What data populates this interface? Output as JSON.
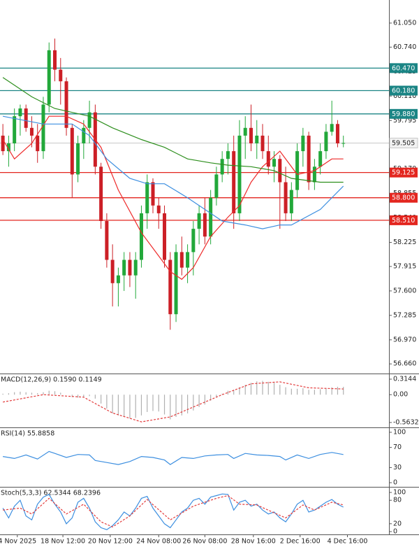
{
  "chart_data": [
    {
      "type": "candlestick",
      "xlim": [
        -0.5,
        66.9
      ],
      "ylim": [
        56.545,
        61.347
      ],
      "yticks": [
        {
          "value": 61.05,
          "label": "61.050"
        },
        {
          "value": 60.74,
          "label": "60.740"
        },
        {
          "value": 60.425,
          "label": "60.425"
        },
        {
          "value": 60.11,
          "label": "60.110"
        },
        {
          "value": 59.795,
          "label": "59.795"
        },
        {
          "value": 59.17,
          "label": "59.170"
        },
        {
          "value": 58.855,
          "label": "58.855"
        },
        {
          "value": 58.54,
          "label": "58.540"
        },
        {
          "value": 58.225,
          "label": "58.225"
        },
        {
          "value": 57.915,
          "label": "57.915"
        },
        {
          "value": 57.6,
          "label": "57.600"
        },
        {
          "value": 57.285,
          "label": "57.285"
        },
        {
          "value": 56.97,
          "label": "56.970"
        },
        {
          "value": 56.66,
          "label": "56.660"
        }
      ],
      "up_color": "#22a83a",
      "down_color": "#cc1f26",
      "open": [
        59.6,
        59.4,
        59.5,
        59.85,
        59.95,
        59.7,
        59.6,
        59.4,
        60.0,
        60.7,
        60.45,
        60.3,
        59.7,
        59.1,
        59.5,
        59.7,
        59.9,
        59.2,
        58.5,
        58.0,
        57.7,
        57.8,
        58.0,
        57.8,
        58.0,
        58.6,
        59.0,
        58.7,
        58.6,
        58.0,
        57.3,
        58.1,
        57.9,
        58.1,
        58.4,
        58.6,
        58.3,
        58.8,
        59.1,
        59.3,
        59.4,
        58.6,
        59.6,
        59.7,
        59.5,
        59.6,
        59.4,
        59.2,
        59.3,
        59.0,
        58.6,
        58.9,
        59.4,
        59.6,
        59.0,
        59.2,
        59.4,
        59.65,
        59.75,
        59.5
      ],
      "high": [
        59.75,
        59.6,
        59.95,
        60.0,
        60.0,
        59.85,
        59.75,
        60.1,
        60.8,
        60.85,
        60.6,
        60.35,
        59.75,
        59.6,
        59.8,
        60.05,
        60.0,
        59.25,
        58.6,
        58.2,
        57.9,
        58.1,
        58.1,
        58.1,
        58.7,
        59.1,
        59.05,
        58.8,
        58.7,
        58.1,
        58.2,
        58.3,
        58.2,
        58.5,
        58.7,
        58.8,
        58.9,
        59.2,
        59.4,
        59.5,
        59.6,
        59.8,
        59.85,
        60.0,
        59.8,
        59.75,
        59.6,
        59.4,
        59.35,
        59.2,
        59.0,
        59.5,
        59.7,
        59.65,
        59.3,
        59.5,
        59.75,
        60.05,
        59.8,
        59.6
      ],
      "low": [
        59.35,
        59.2,
        59.4,
        59.6,
        59.65,
        59.45,
        59.25,
        59.3,
        59.9,
        60.3,
        60.0,
        59.6,
        58.8,
        59.0,
        59.3,
        59.5,
        59.1,
        58.4,
        57.9,
        57.4,
        57.4,
        57.6,
        57.65,
        57.5,
        57.9,
        58.4,
        58.6,
        58.4,
        57.9,
        57.1,
        57.2,
        57.8,
        57.7,
        57.8,
        58.2,
        58.2,
        58.2,
        58.7,
        59.0,
        59.1,
        58.4,
        58.5,
        59.3,
        59.4,
        59.3,
        59.3,
        59.1,
        59.0,
        58.4,
        58.5,
        58.5,
        58.8,
        59.2,
        58.9,
        58.9,
        59.1,
        59.3,
        59.6,
        59.45,
        59.45
      ],
      "close": [
        59.4,
        59.5,
        59.85,
        59.95,
        59.7,
        59.6,
        59.4,
        60.0,
        60.7,
        60.45,
        60.3,
        59.7,
        59.1,
        59.5,
        59.7,
        59.9,
        59.2,
        58.5,
        58.0,
        57.7,
        57.8,
        58.0,
        57.8,
        58.0,
        58.6,
        59.0,
        58.7,
        58.6,
        58.0,
        57.3,
        58.1,
        57.9,
        58.1,
        58.4,
        58.6,
        58.3,
        58.8,
        59.1,
        59.3,
        59.4,
        58.6,
        59.6,
        59.7,
        59.5,
        59.6,
        59.4,
        59.2,
        59.3,
        59.0,
        58.6,
        58.9,
        59.4,
        59.6,
        59.0,
        59.2,
        59.4,
        59.65,
        59.75,
        59.5,
        59.505
      ],
      "overlays": [
        {
          "color": "#ee2a2a",
          "x": [
            0,
            2,
            5,
            8,
            11,
            14,
            17,
            20,
            24,
            27,
            29,
            31,
            33,
            36,
            39,
            41,
            43,
            45,
            48,
            51,
            54,
            57,
            59
          ],
          "values": [
            59.55,
            59.3,
            59.5,
            59.85,
            59.85,
            59.75,
            59.45,
            58.9,
            58.35,
            58.05,
            57.85,
            57.75,
            57.9,
            58.3,
            58.55,
            58.7,
            59.0,
            59.2,
            59.4,
            59.1,
            59.15,
            59.3,
            59.3
          ]
        },
        {
          "color": "#3d8fe0",
          "x": [
            0,
            7,
            12,
            15,
            18,
            22,
            25,
            28,
            32,
            36,
            38,
            42,
            45,
            48,
            50,
            55,
            59
          ],
          "values": [
            59.85,
            59.75,
            59.75,
            59.6,
            59.3,
            59.05,
            58.98,
            58.98,
            58.8,
            58.6,
            58.5,
            58.45,
            58.4,
            58.45,
            58.45,
            58.65,
            58.95
          ]
        },
        {
          "color": "#2e8f1e",
          "x": [
            0,
            5,
            9,
            15,
            19,
            24,
            28,
            32,
            36,
            39,
            43,
            47,
            50,
            55,
            59
          ],
          "values": [
            60.35,
            60.1,
            59.95,
            59.85,
            59.7,
            59.55,
            59.45,
            59.3,
            59.25,
            59.22,
            59.2,
            59.15,
            59.05,
            59.0,
            59.0
          ]
        }
      ],
      "levels": [
        {
          "value": 60.47,
          "label": "60.470",
          "color": "#1b8585"
        },
        {
          "value": 60.18,
          "label": "60.180",
          "color": "#1b8585"
        },
        {
          "value": 59.88,
          "label": "59.880",
          "color": "#1b8585"
        },
        {
          "value": 59.125,
          "label": "59.125",
          "color": "#e3261f"
        },
        {
          "value": 58.8,
          "label": "58.800",
          "color": "#e3261f"
        },
        {
          "value": 58.51,
          "label": "58.510",
          "color": "#e3261f"
        }
      ],
      "last": {
        "value": 59.505,
        "label": "59.505",
        "color": "#c8c8c8"
      }
    },
    {
      "type": "macd",
      "title": "MACD(12,26,9) 0.1590 0.1149",
      "xlim": [
        -0.5,
        66.9
      ],
      "ylim": [
        -0.648,
        0.414
      ],
      "yticks": [
        0.3144,
        {
          "value": 0,
          "label": "0.00"
        },
        -0.5632
      ],
      "color": "#b0b0b0",
      "values": [
        0.02,
        0.03,
        0.05,
        0.06,
        0.05,
        0.04,
        0.03,
        0.05,
        0.08,
        0.07,
        0.04,
        0.0,
        -0.05,
        -0.06,
        -0.05,
        -0.03,
        -0.08,
        -0.18,
        -0.28,
        -0.38,
        -0.42,
        -0.45,
        -0.48,
        -0.47,
        -0.42,
        -0.35,
        -0.33,
        -0.34,
        -0.4,
        -0.5,
        -0.45,
        -0.42,
        -0.38,
        -0.32,
        -0.25,
        -0.2,
        -0.12,
        -0.05,
        0.02,
        0.08,
        0.1,
        0.15,
        0.2,
        0.24,
        0.27,
        0.28,
        0.26,
        0.24,
        0.2,
        0.15,
        0.12,
        0.12,
        0.13,
        0.1,
        0.1,
        0.11,
        0.13,
        0.15,
        0.16,
        0.159
      ],
      "series": [
        {
          "color": "#e33b3b",
          "dashed": true,
          "x": [
            0,
            7,
            14,
            19,
            24,
            29,
            33,
            38,
            43,
            48,
            53,
            59
          ],
          "values": [
            -0.15,
            0.0,
            -0.05,
            -0.37,
            -0.55,
            -0.45,
            -0.25,
            0.0,
            0.22,
            0.26,
            0.14,
            0.115
          ]
        }
      ]
    },
    {
      "type": "line",
      "title": "RSI(14) 55.8858",
      "xlim": [
        -0.5,
        66.9
      ],
      "ylim": [
        -6.9,
        108.3
      ],
      "yticks": [
        100,
        70,
        30,
        0
      ],
      "series": [
        {
          "color": "#3d8fe0",
          "x": [
            0,
            2,
            4,
            6,
            8,
            9,
            11,
            13,
            15,
            16,
            18,
            20,
            22,
            24,
            26,
            28,
            29,
            31,
            33,
            35,
            37,
            39,
            40,
            42,
            44,
            46,
            48,
            49,
            51,
            53,
            55,
            57,
            59
          ],
          "values": [
            52,
            48,
            55,
            47,
            62,
            58,
            50,
            56,
            55,
            44,
            40,
            36,
            42,
            52,
            50,
            45,
            36,
            50,
            48,
            53,
            55,
            56,
            48,
            58,
            55,
            54,
            52,
            45,
            55,
            48,
            56,
            60,
            55.9
          ]
        }
      ]
    },
    {
      "type": "line",
      "title": "Stoch(5,3,3) 62.5344 68.2396",
      "xlim": [
        -0.5,
        66.9
      ],
      "ylim": [
        -5.4,
        112.5
      ],
      "yticks": [
        100,
        80,
        20,
        0
      ],
      "xticks": [
        {
          "value": 2.5,
          "label": "4 Nov 2025"
        },
        {
          "value": 10.4,
          "label": "18 Nov 12:00"
        },
        {
          "value": 18.6,
          "label": "20 Nov 12:00"
        },
        {
          "value": 27,
          "label": "24 Nov 08:00"
        },
        {
          "value": 35,
          "label": "26 Nov 08:00"
        },
        {
          "value": 43.4,
          "label": "28 Nov 16:00"
        },
        {
          "value": 51.5,
          "label": "2 Dec 16:00"
        },
        {
          "value": 59.7,
          "label": "4 Dec 16:00"
        }
      ],
      "series": [
        {
          "color": "#3d8fe0",
          "values": [
            60,
            35,
            65,
            80,
            40,
            30,
            70,
            88,
            95,
            70,
            50,
            20,
            35,
            75,
            85,
            60,
            25,
            10,
            5,
            15,
            30,
            50,
            40,
            60,
            85,
            90,
            60,
            40,
            20,
            10,
            30,
            50,
            60,
            80,
            85,
            70,
            88,
            92,
            96,
            95,
            55,
            75,
            80,
            65,
            70,
            55,
            45,
            50,
            35,
            25,
            45,
            70,
            80,
            50,
            55,
            65,
            75,
            82,
            70,
            62.5
          ]
        },
        {
          "color": "#e33b3b",
          "dashed": true,
          "x": [
            0,
            3,
            5,
            8,
            11,
            14,
            17,
            19,
            22,
            25,
            29,
            33,
            37,
            39,
            41,
            44,
            47,
            49,
            52,
            54,
            57,
            59
          ],
          "values": [
            55,
            60,
            45,
            85,
            45,
            70,
            25,
            12,
            40,
            82,
            30,
            65,
            85,
            92,
            70,
            68,
            48,
            35,
            68,
            55,
            75,
            68.2
          ]
        }
      ]
    }
  ]
}
